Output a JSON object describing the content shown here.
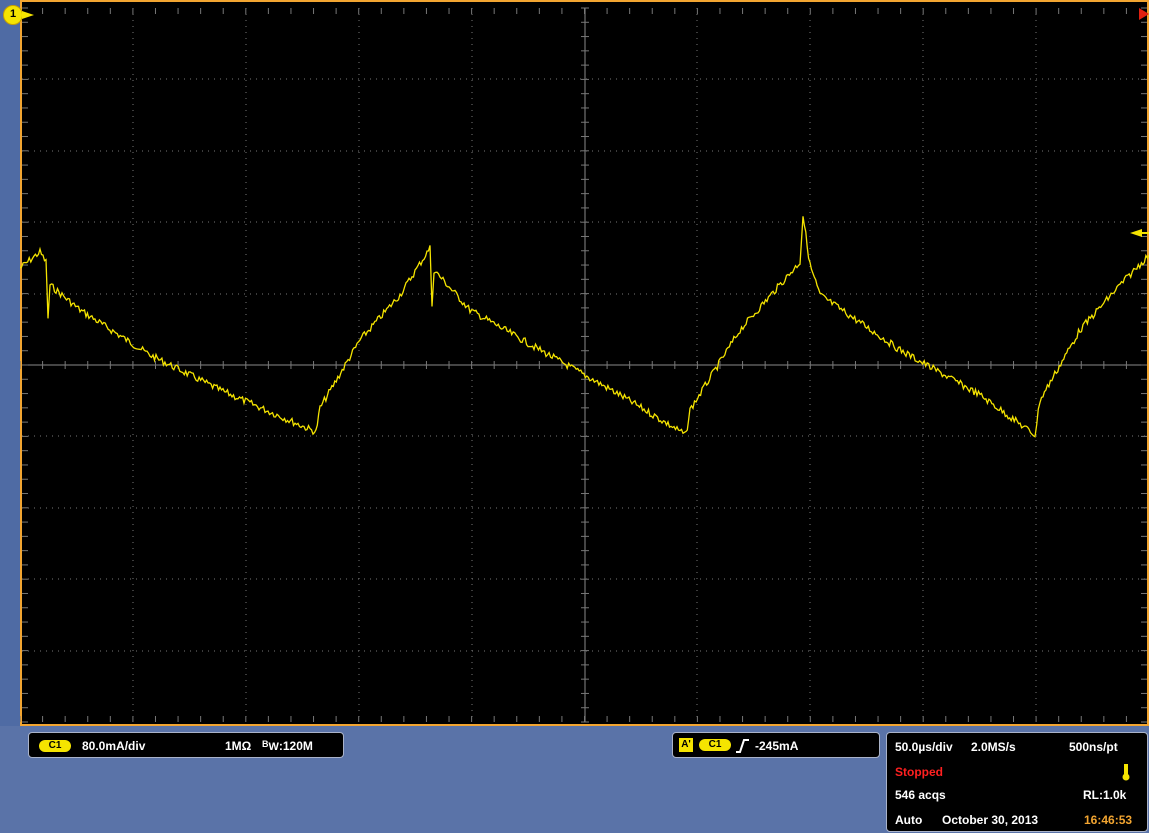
{
  "channel": {
    "badge": "C1",
    "scale": "80.0mA/div",
    "impedance": "1MΩ",
    "bandwidth_prefix": "B",
    "bandwidth_sub": "W",
    "bandwidth_value": ":120M"
  },
  "trigger": {
    "mode_badge": "A'",
    "source_badge": "C1",
    "slope_icon": "rising-edge-icon",
    "level": "-245mA"
  },
  "acquisition": {
    "timebase": "50.0µs/div",
    "sample_rate": "2.0MS/s",
    "resolution": "500ns/pt",
    "status": "Stopped",
    "acqs": "546 acqs",
    "record_length": "RL:1.0k",
    "trigger_mode": "Auto",
    "date": "October 30, 2013",
    "time": "16:46:53"
  },
  "marker": {
    "channel_label": "1"
  },
  "colors": {
    "trace": "#f5e400",
    "frame": "#f2a531",
    "status_stopped": "#ff2020",
    "time": "#f2a531",
    "background": "#000000"
  }
}
